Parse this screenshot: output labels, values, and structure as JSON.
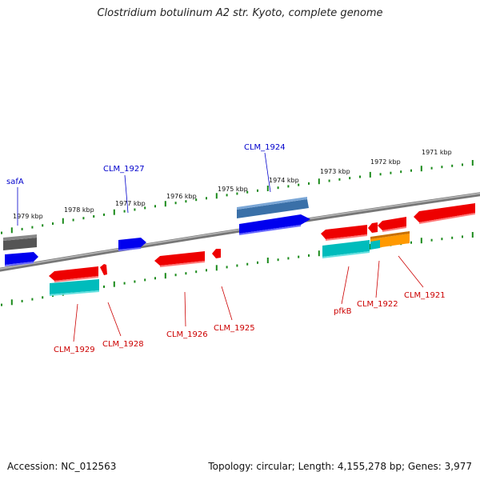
{
  "title": "Clostridium botulinum A2 str. Kyoto, complete genome",
  "footer": {
    "accession": "Accession: NC_012563",
    "summary": "Topology: circular; Length: 4,155,278 bp; Genes: 3,977"
  },
  "colors": {
    "backbone": "#8a8a8a",
    "forward_gene": "#0000ee",
    "reverse_gene": "#ee0000",
    "cyan_feature": "#00c8c8",
    "steelblue_feature": "#4a80b8",
    "gray_feature": "#666666",
    "orange_feature": "#ff9900",
    "tick": "#1a8a1a",
    "forward_label": "#0000cc",
    "reverse_label": "#cc0000"
  },
  "scale_labels": [
    "1979 kbp",
    "1978 kbp",
    "1977 kbp",
    "1976 kbp",
    "1975 kbp",
    "1974 kbp",
    "1973 kbp",
    "1972 kbp",
    "1971 kbp"
  ],
  "forward_labels": [
    "safA",
    "CLM_1927",
    "CLM_1924"
  ],
  "reverse_labels": [
    "CLM_1929",
    "CLM_1928",
    "CLM_1926",
    "CLM_1925",
    "pfkB",
    "CLM_1922",
    "CLM_1921"
  ]
}
